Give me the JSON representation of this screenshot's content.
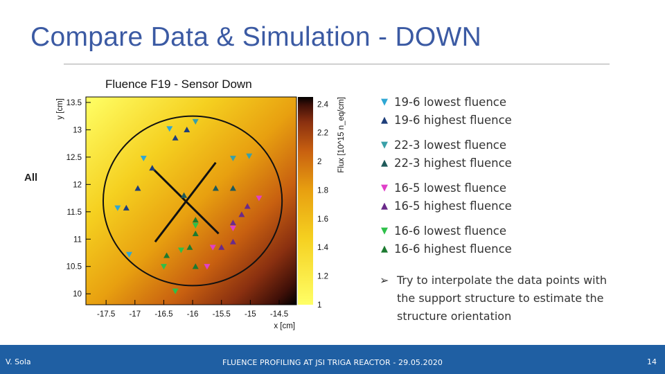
{
  "slide": {
    "title": "Compare Data & Simulation - DOWN",
    "side_label": "All",
    "footer_author": "V. Sola",
    "footer_center": "FLUENCE PROFILING AT JSI TRIGA REACTOR - 29.05.2020",
    "footer_page": "14"
  },
  "legend": [
    {
      "marker": "▼",
      "color": "#2fa7d4",
      "label": "19-6 lowest fluence"
    },
    {
      "marker": "▲",
      "color": "#1f3f7a",
      "label": "19-6 highest fluence"
    },
    {
      "marker": "▼",
      "color": "#3aa0a8",
      "label": "22-3 lowest fluence"
    },
    {
      "marker": "▲",
      "color": "#1f5a5a",
      "label": "22-3 highest fluence"
    },
    {
      "marker": "▼",
      "color": "#e040c8",
      "label": "16-5 lowest fluence"
    },
    {
      "marker": "▲",
      "color": "#6a2a8a",
      "label": "16-5 highest fluence"
    },
    {
      "marker": "▼",
      "color": "#2ec04a",
      "label": "16-6 lowest fluence"
    },
    {
      "marker": "▲",
      "color": "#1c7a30",
      "label": "16-6 highest fluence"
    }
  ],
  "note": {
    "arrow": "➢",
    "text": "Try to interpolate the data points with the support structure to estimate the structure orientation"
  },
  "chart_data": {
    "type": "heatmap",
    "title": "Fluence F19 - Sensor Down",
    "xlabel": "x [cm]",
    "ylabel": "y [cm]",
    "zlabel": "Flux [10^15 n_eq/cm]",
    "xlim": [
      -17.85,
      -14.2
    ],
    "ylim": [
      9.8,
      13.6
    ],
    "zlim": [
      1.0,
      2.45
    ],
    "xticks": [
      "-17.5",
      "-17",
      "-16.5",
      "-16",
      "-15.5",
      "-15",
      "-14.5"
    ],
    "yticks": [
      "10",
      "10.5",
      "11",
      "11.5",
      "12",
      "12.5",
      "13",
      "13.5"
    ],
    "zticks": [
      "1",
      "1.2",
      "1.4",
      "1.6",
      "1.8",
      "2",
      "2.2",
      "2.4"
    ],
    "colormap": [
      "#ffff66",
      "#f5d020",
      "#e8a010",
      "#c86010",
      "#8a3010",
      "#401008",
      "#000000"
    ],
    "gradient_direction": "increases toward the bottom-right",
    "circle": {
      "center_x": -16.0,
      "center_y": 11.7,
      "radius": 1.55
    },
    "support_lines": [
      {
        "x": [
          -16.7,
          -15.55
        ],
        "y": [
          12.3,
          11.1
        ]
      },
      {
        "x": [
          -16.65,
          -15.6
        ],
        "y": [
          10.95,
          12.4
        ]
      }
    ],
    "markers": [
      {
        "series": "19-6 lowest fluence",
        "dir": "down",
        "color": "#2fa7d4",
        "points": [
          [
            -16.4,
            13.02
          ],
          [
            -16.85,
            12.48
          ],
          [
            -17.3,
            11.57
          ],
          [
            -17.1,
            10.72
          ]
        ]
      },
      {
        "series": "19-6 highest fluence",
        "dir": "up",
        "color": "#1f3f7a",
        "points": [
          [
            -16.1,
            13.0
          ],
          [
            -16.3,
            12.85
          ],
          [
            -16.7,
            12.3
          ],
          [
            -16.95,
            11.93
          ],
          [
            -17.15,
            11.57
          ]
        ]
      },
      {
        "series": "22-3 lowest fluence",
        "dir": "down",
        "color": "#3aa0a8",
        "points": [
          [
            -15.95,
            13.15
          ],
          [
            -15.3,
            12.48
          ],
          [
            -15.02,
            12.52
          ]
        ]
      },
      {
        "series": "22-3 highest fluence",
        "dir": "up",
        "color": "#1f5a5a",
        "points": [
          [
            -15.3,
            11.93
          ],
          [
            -15.6,
            11.93
          ],
          [
            -16.15,
            11.8
          ]
        ]
      },
      {
        "series": "16-5 lowest fluence",
        "dir": "down",
        "color": "#e040c8",
        "points": [
          [
            -14.85,
            11.75
          ],
          [
            -15.3,
            11.2
          ],
          [
            -15.65,
            10.85
          ],
          [
            -15.75,
            10.5
          ]
        ]
      },
      {
        "series": "16-5 highest fluence",
        "dir": "up",
        "color": "#6a2a8a",
        "points": [
          [
            -15.05,
            11.6
          ],
          [
            -15.15,
            11.45
          ],
          [
            -15.3,
            11.3
          ],
          [
            -15.3,
            10.95
          ],
          [
            -15.5,
            10.85
          ]
        ]
      },
      {
        "series": "16-6 lowest fluence",
        "dir": "down",
        "color": "#2ec04a",
        "points": [
          [
            -15.95,
            11.25
          ],
          [
            -16.2,
            10.8
          ],
          [
            -16.5,
            10.5
          ],
          [
            -16.3,
            10.05
          ]
        ]
      },
      {
        "series": "16-6 highest fluence",
        "dir": "up",
        "color": "#1c7a30",
        "points": [
          [
            -15.95,
            11.35
          ],
          [
            -15.95,
            11.1
          ],
          [
            -16.05,
            10.85
          ],
          [
            -16.45,
            10.7
          ],
          [
            -15.95,
            10.5
          ]
        ]
      }
    ]
  }
}
